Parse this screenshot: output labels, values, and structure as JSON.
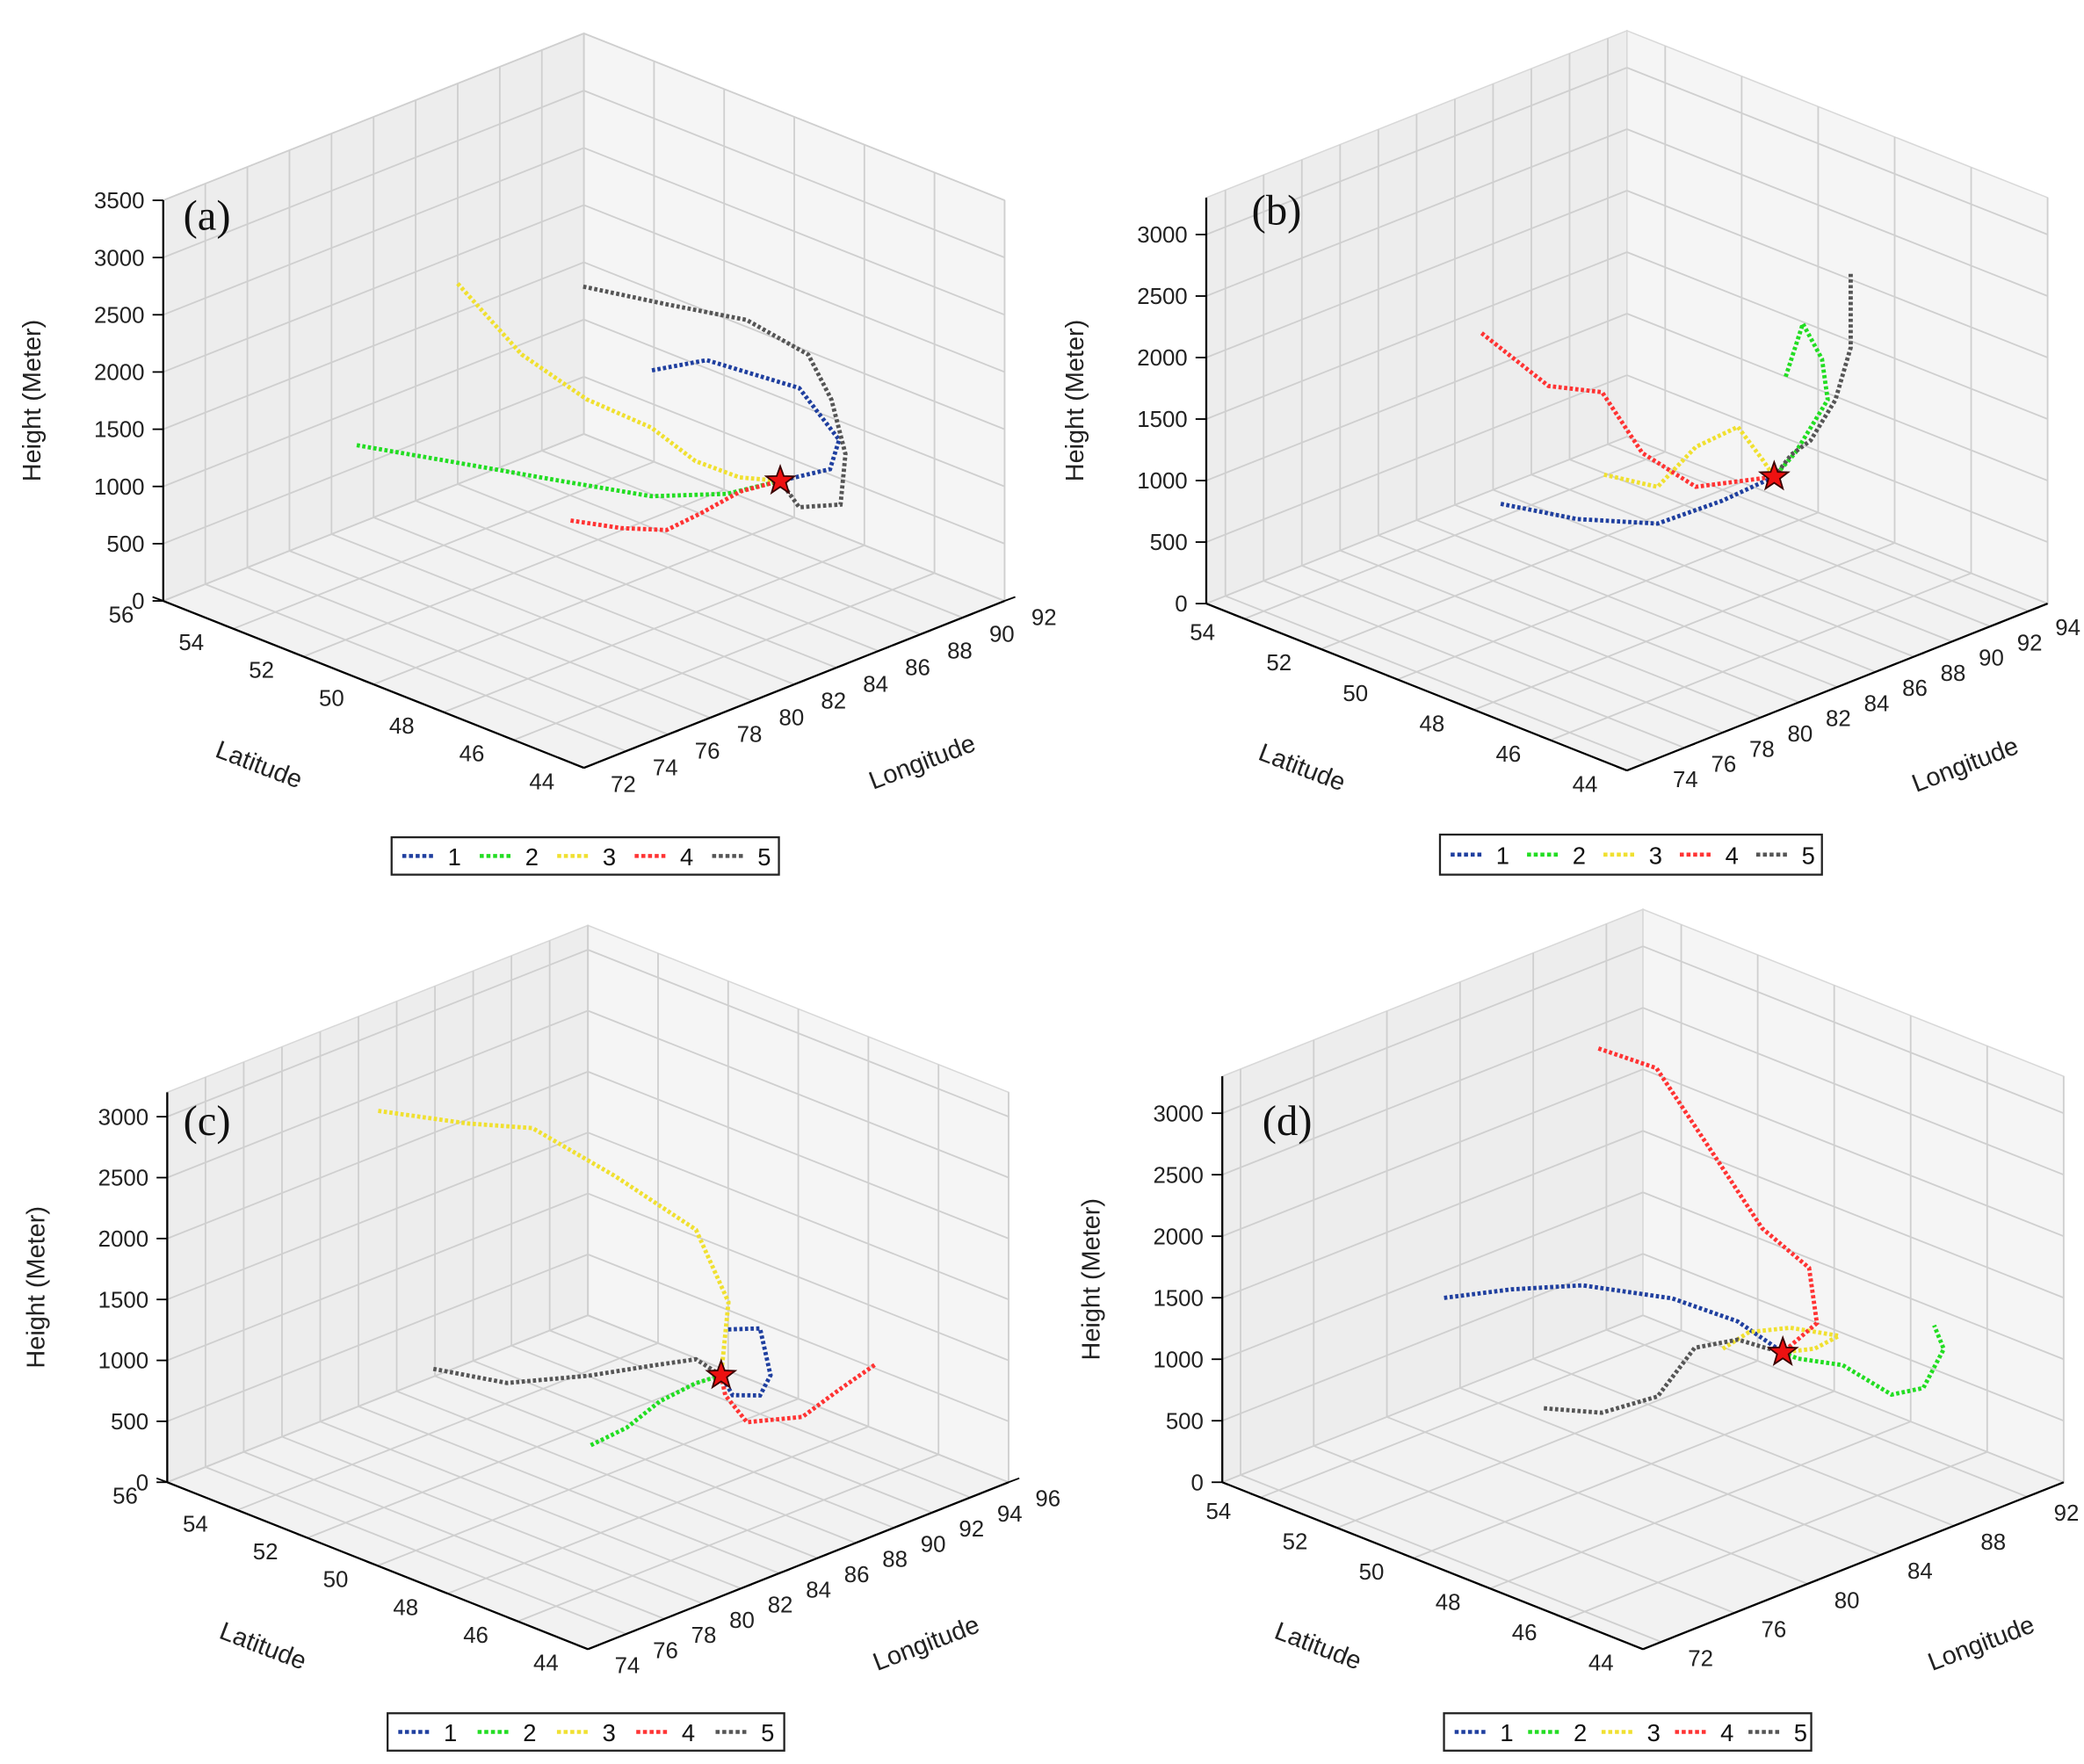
{
  "chart_data": [
    {
      "type": "scatter3d-trajectory",
      "panel_label": "(a)",
      "xlabel": "Longitude",
      "ylabel": "Latitude",
      "zlabel": "Height (Meter)",
      "lon_range": [
        72,
        92
      ],
      "lon_ticks": [
        72,
        74,
        76,
        78,
        80,
        82,
        84,
        86,
        88,
        90,
        92
      ],
      "lat_range": [
        44,
        56
      ],
      "lat_ticks": [
        44,
        46,
        48,
        50,
        52,
        54,
        56
      ],
      "z_range": [
        0,
        3500
      ],
      "z_ticks": [
        0,
        500,
        1000,
        1500,
        2000,
        2500,
        3000,
        3500
      ],
      "receptor": [
        87.0,
        47.4,
        1000
      ],
      "legend": [
        "1",
        "2",
        "3",
        "4",
        "5"
      ],
      "series": [
        {
          "name": "1",
          "color": "#1f3f9f",
          "points": [
            [
              84.4,
              49.5,
              1900
            ],
            [
              87.0,
              49.5,
              1800
            ],
            [
              88.9,
              48.0,
              1600
            ],
            [
              88.8,
              46.8,
              1300
            ],
            [
              88.2,
              46.7,
              1100
            ],
            [
              87.0,
              47.4,
              1000
            ]
          ]
        },
        {
          "name": "2",
          "color": "#22dd22",
          "points": [
            [
              77.7,
              53.9,
              1200
            ],
            [
              79.5,
              52.6,
              1100
            ],
            [
              81.8,
              50.5,
              1000
            ],
            [
              83.7,
              49.1,
              900
            ],
            [
              85.3,
              47.9,
              950
            ],
            [
              87.0,
              47.4,
              1000
            ]
          ]
        },
        {
          "name": "3",
          "color": "#f0e030",
          "points": [
            [
              79.5,
              52.1,
              2700
            ],
            [
              80.2,
              50.7,
              2200
            ],
            [
              81.8,
              49.8,
              1800
            ],
            [
              83.7,
              49.1,
              1500
            ],
            [
              84.8,
              48.5,
              1200
            ],
            [
              85.9,
              47.9,
              1050
            ],
            [
              87.0,
              47.4,
              1000
            ]
          ]
        },
        {
          "name": "4",
          "color": "#ff3333",
          "points": [
            [
              81.7,
              50.2,
              700
            ],
            [
              82.8,
              49.4,
              650
            ],
            [
              84.1,
              48.9,
              600
            ],
            [
              85.2,
              48.6,
              700
            ],
            [
              86.1,
              48.0,
              900
            ],
            [
              87.0,
              47.4,
              1000
            ]
          ]
        },
        {
          "name": "5",
          "color": "#555555",
          "points": [
            [
              82.3,
              50.2,
              2700
            ],
            [
              83.9,
              48.8,
              2600
            ],
            [
              85.9,
              47.7,
              2450
            ],
            [
              87.0,
              46.6,
              2200
            ],
            [
              87.6,
              46.3,
              1800
            ],
            [
              88.1,
              46.2,
              1300
            ],
            [
              87.7,
              46.1,
              900
            ],
            [
              86.9,
              46.8,
              850
            ],
            [
              87.0,
              47.4,
              1000
            ]
          ]
        }
      ]
    },
    {
      "type": "scatter3d-trajectory",
      "panel_label": "(b)",
      "xlabel": "Longitude",
      "ylabel": "Latitude",
      "zlabel": "Height (Meter)",
      "lon_range": [
        73,
        95
      ],
      "lon_ticks": [
        74,
        76,
        78,
        80,
        82,
        84,
        86,
        88,
        90,
        92,
        94
      ],
      "lat_range": [
        44,
        55
      ],
      "lat_ticks": [
        44,
        46,
        48,
        50,
        52,
        54
      ],
      "z_range": [
        0,
        3300
      ],
      "z_ticks": [
        0,
        500,
        1000,
        1500,
        2000,
        2500,
        3000
      ],
      "receptor": [
        88.1,
        47.7,
        1000
      ],
      "legend": [
        "1",
        "2",
        "3",
        "4",
        "5"
      ],
      "series": [
        {
          "name": "1",
          "color": "#1f3f9f",
          "points": [
            [
              81.6,
              51.6,
              700
            ],
            [
              83.0,
              50.3,
              650
            ],
            [
              84.8,
              49.1,
              650
            ],
            [
              86.8,
              48.4,
              800
            ],
            [
              88.1,
              47.7,
              1000
            ]
          ]
        },
        {
          "name": "2",
          "color": "#22dd22",
          "points": [
            [
              87.7,
              47.2,
              1900
            ],
            [
              88.4,
              47.1,
              2300
            ],
            [
              89.0,
              46.9,
              2000
            ],
            [
              88.9,
              46.7,
              1700
            ],
            [
              88.6,
              47.4,
              1200
            ],
            [
              88.1,
              47.7,
              1000
            ]
          ]
        },
        {
          "name": "3",
          "color": "#f0e030",
          "points": [
            [
              84.6,
              50.4,
              900
            ],
            [
              85.6,
              49.5,
              850
            ],
            [
              86.8,
              49.1,
              1150
            ],
            [
              87.6,
              48.4,
              1350
            ],
            [
              88.1,
              48.0,
              1100
            ],
            [
              88.1,
              47.7,
              1000
            ]
          ]
        },
        {
          "name": "4",
          "color": "#ff3333",
          "points": [
            [
              81.0,
              51.8,
              2100
            ],
            [
              82.1,
              50.6,
              1750
            ],
            [
              83.5,
              49.9,
              1700
            ],
            [
              84.6,
              49.4,
              1200
            ],
            [
              86.2,
              48.8,
              900
            ],
            [
              88.1,
              47.7,
              1000
            ]
          ]
        },
        {
          "name": "5",
          "color": "#555555",
          "points": [
            [
              90.5,
              46.9,
              2600
            ],
            [
              90.5,
              46.9,
              2000
            ],
            [
              89.9,
              47.0,
              1600
            ],
            [
              89.0,
              47.2,
              1300
            ],
            [
              88.8,
              47.6,
              1150
            ],
            [
              88.1,
              47.7,
              1000
            ]
          ]
        }
      ]
    },
    {
      "type": "scatter3d-trajectory",
      "panel_label": "(c)",
      "xlabel": "Longitude",
      "ylabel": "Latitude",
      "zlabel": "Height (Meter)",
      "lon_range": [
        74,
        96
      ],
      "lon_ticks": [
        74,
        76,
        78,
        80,
        82,
        84,
        86,
        88,
        90,
        92,
        94,
        96
      ],
      "lat_range": [
        44,
        56
      ],
      "lat_ticks": [
        44,
        46,
        48,
        50,
        52,
        54,
        56
      ],
      "z_range": [
        0,
        3200
      ],
      "z_ticks": [
        0,
        500,
        1000,
        1500,
        2000,
        2500,
        3000
      ],
      "receptor": [
        88.3,
        48.0,
        900
      ],
      "legend": [
        "1",
        "2",
        "3",
        "4",
        "5"
      ],
      "series": [
        {
          "name": "1",
          "color": "#1f3f9f",
          "points": [
            [
              88.3,
              47.8,
              1300
            ],
            [
              89.6,
              47.6,
              1250
            ],
            [
              89.6,
              47.3,
              900
            ],
            [
              89.6,
              47.6,
              700
            ],
            [
              88.9,
              48.0,
              700
            ],
            [
              88.3,
              48.0,
              900
            ]
          ]
        },
        {
          "name": "2",
          "color": "#22dd22",
          "points": [
            [
              83.5,
              49.1,
              500
            ],
            [
              85.2,
              49.0,
              550
            ],
            [
              86.2,
              48.6,
              750
            ],
            [
              87.5,
              48.3,
              850
            ],
            [
              88.3,
              48.0,
              900
            ]
          ]
        },
        {
          "name": "3",
          "color": "#f0e030",
          "points": [
            [
              79.9,
              53.2,
              3000
            ],
            [
              81.8,
              51.7,
              2950
            ],
            [
              83.2,
              50.6,
              2950
            ],
            [
              84.6,
              49.0,
              2650
            ],
            [
              86.8,
              47.9,
              2200
            ],
            [
              88.5,
              47.9,
              1500
            ],
            [
              88.3,
              48.0,
              900
            ]
          ]
        },
        {
          "name": "4",
          "color": "#ff3333",
          "points": [
            [
              88.3,
              48.0,
              900
            ],
            [
              88.7,
              48.1,
              700
            ],
            [
              89.1,
              47.7,
              500
            ],
            [
              90.9,
              47.1,
              500
            ],
            [
              92.2,
              46.7,
              700
            ],
            [
              93.1,
              46.2,
              900
            ]
          ]
        },
        {
          "name": "5",
          "color": "#555555",
          "points": [
            [
              80.4,
              51.9,
              1000
            ],
            [
              82.6,
              51.0,
              850
            ],
            [
              85.2,
              50.1,
              850
            ],
            [
              86.8,
              49.1,
              950
            ],
            [
              87.9,
              48.5,
              1000
            ],
            [
              88.3,
              48.0,
              900
            ]
          ]
        }
      ]
    },
    {
      "type": "scatter3d-trajectory",
      "panel_label": "(d)",
      "xlabel": "Longitude",
      "ylabel": "Latitude",
      "zlabel": "Height (Meter)",
      "lon_range": [
        71,
        94
      ],
      "lon_ticks": [
        72,
        76,
        80,
        84,
        88,
        92
      ],
      "lat_range": [
        44,
        55
      ],
      "lat_ticks": [
        44,
        46,
        48,
        50,
        52,
        54
      ],
      "z_range": [
        0,
        3300
      ],
      "z_ticks": [
        0,
        500,
        1000,
        1500,
        2000,
        2500,
        3000
      ],
      "receptor": [
        86.8,
        47.9,
        1000
      ],
      "legend": [
        "1",
        "2",
        "3",
        "4",
        "5"
      ],
      "series": [
        {
          "name": "1",
          "color": "#1f3f9f",
          "points": [
            [
              77.9,
              52.5,
              1400
            ],
            [
              79.9,
              51.7,
              1450
            ],
            [
              81.7,
              50.7,
              1500
            ],
            [
              84.1,
              49.5,
              1400
            ],
            [
              86.0,
              48.7,
              1200
            ],
            [
              86.8,
              47.9,
              1000
            ]
          ]
        },
        {
          "name": "2",
          "color": "#22dd22",
          "points": [
            [
              86.8,
              47.9,
              1000
            ],
            [
              87.2,
              47.7,
              950
            ],
            [
              88.4,
              47.1,
              900
            ],
            [
              89.4,
              46.3,
              700
            ],
            [
              90.3,
              45.9,
              750
            ],
            [
              91.0,
              45.7,
              1050
            ],
            [
              91.1,
              46.0,
              1200
            ]
          ]
        },
        {
          "name": "3",
          "color": "#f0e030",
          "points": [
            [
              85.4,
              48.8,
              1000
            ],
            [
              86.0,
              48.4,
              1150
            ],
            [
              87.0,
              47.8,
              1200
            ],
            [
              88.2,
              47.1,
              1150
            ],
            [
              87.5,
              47.4,
              1050
            ],
            [
              86.8,
              47.9,
              1000
            ]
          ]
        },
        {
          "name": "4",
          "color": "#ff3333",
          "points": [
            [
              83.2,
              51.0,
              3300
            ],
            [
              84.7,
              50.2,
              3150
            ],
            [
              85.3,
              49.1,
              2600
            ],
            [
              86.3,
              48.2,
              2000
            ],
            [
              87.4,
              47.5,
              1700
            ],
            [
              87.2,
              47.2,
              1300
            ],
            [
              86.8,
              47.9,
              1000
            ]
          ]
        },
        {
          "name": "5",
          "color": "#555555",
          "points": [
            [
              79.8,
              50.8,
              600
            ],
            [
              81.5,
              50.1,
              550
            ],
            [
              83.3,
              49.5,
              650
            ],
            [
              84.7,
              49.2,
              1000
            ],
            [
              85.6,
              48.5,
              1100
            ],
            [
              86.2,
              48.1,
              1050
            ],
            [
              86.8,
              47.9,
              1000
            ]
          ]
        }
      ]
    }
  ]
}
